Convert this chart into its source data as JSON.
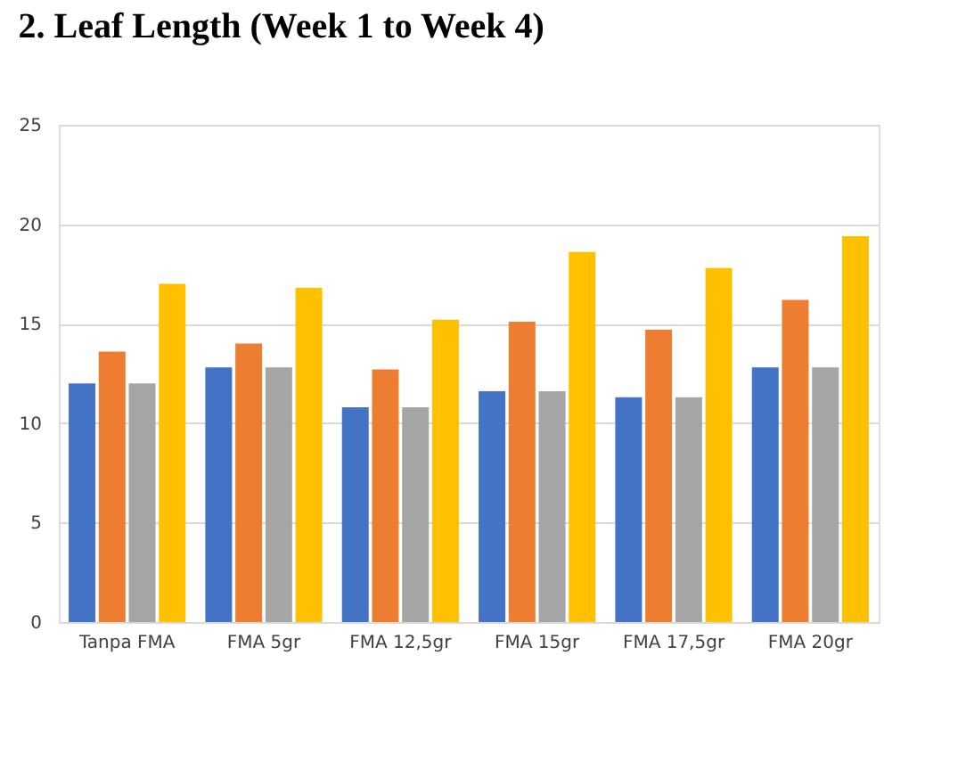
{
  "chart_data": {
    "type": "bar",
    "title": "2. Leaf Length (Week 1 to Week 4)",
    "categories": [
      "Tanpa FMA",
      "FMA 5gr",
      "FMA 12,5gr",
      "FMA 15gr",
      "FMA 17,5gr",
      "FMA 20gr"
    ],
    "series": [
      {
        "color": "#4472c4",
        "values": [
          12.0,
          12.8,
          10.8,
          11.6,
          11.3,
          12.8
        ]
      },
      {
        "color": "#ed7d31",
        "values": [
          13.6,
          14.0,
          12.7,
          15.1,
          14.7,
          16.2
        ]
      },
      {
        "color": "#a5a5a5",
        "values": [
          12.0,
          12.8,
          10.8,
          11.6,
          11.3,
          12.8
        ]
      },
      {
        "color": "#ffc000",
        "values": [
          17.0,
          16.8,
          15.2,
          18.6,
          17.8,
          19.4
        ]
      }
    ],
    "ylim": [
      0,
      25
    ],
    "yticks": [
      0,
      5,
      10,
      15,
      20,
      25
    ],
    "grid": "y",
    "legend": false
  }
}
